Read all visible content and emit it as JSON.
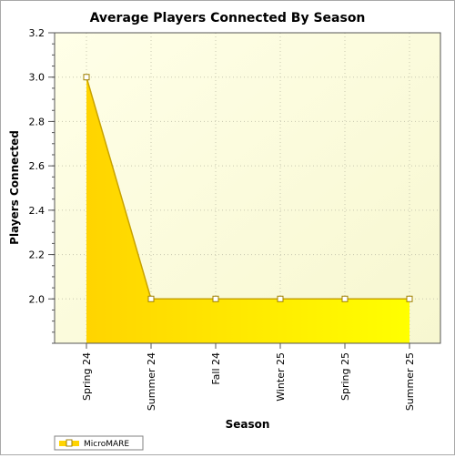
{
  "chart_data": {
    "type": "area",
    "title": "Average Players Connected By Season",
    "xlabel": "Season",
    "ylabel": "Players Connected",
    "categories": [
      "Spring 24",
      "Summer 24",
      "Fall 24",
      "Winter 25",
      "Spring 25",
      "Summer 25"
    ],
    "series": [
      {
        "name": "MicroMARE",
        "values": [
          3.0,
          2.0,
          2.0,
          2.0,
          2.0,
          2.0
        ]
      }
    ],
    "ylim": [
      1.8,
      3.2
    ],
    "yticks": [
      "3.2",
      "3.0",
      "2.8",
      "2.6",
      "2.4",
      "2.2",
      "2.0"
    ],
    "grid": true,
    "legend_position": "bottom-left",
    "colors": {
      "area_fill_start": "#ffd400",
      "area_fill_end": "#ffff00",
      "line": "#c8a200",
      "marker_fill": "#ffffff",
      "marker_stroke": "#a08000",
      "plot_bg_left": "#ffffe8",
      "plot_bg_right": "#f7f7d0"
    }
  }
}
